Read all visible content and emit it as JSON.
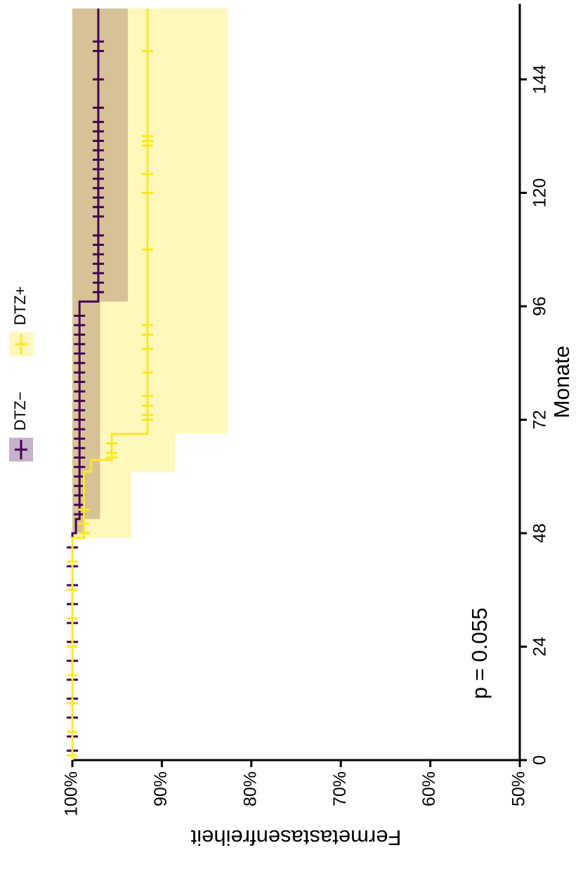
{
  "chart_data": {
    "type": "km",
    "x_label": "Monate",
    "y_label": "Fermetastasenfreiheit",
    "annotation": "p = 0.055",
    "xlim": [
      0,
      160
    ],
    "xticks": [
      0,
      24,
      48,
      72,
      96,
      120,
      144
    ],
    "ylim": [
      50,
      100
    ],
    "yticks": [
      {
        "value": 50,
        "label": "50%"
      },
      {
        "value": 60,
        "label": "60%"
      },
      {
        "value": 70,
        "label": "70%"
      },
      {
        "value": 80,
        "label": "80%"
      },
      {
        "value": 90,
        "label": "90%"
      },
      {
        "value": 100,
        "label": "100%"
      }
    ],
    "series": [
      {
        "name": "DTZ−",
        "color": "#440154",
        "x": [
          0,
          48,
          51,
          97,
          159
        ],
        "values": [
          100,
          99.6,
          99.2,
          97.1,
          97.1
        ],
        "ci_lower": [
          100,
          98.8,
          96.9,
          93.8,
          93.8
        ],
        "censor_x": [
          2,
          5,
          9,
          13,
          17,
          21,
          25,
          29,
          33,
          37,
          41,
          45,
          52,
          54,
          56,
          58,
          60,
          62,
          64,
          66,
          68,
          70,
          72,
          74,
          76,
          78,
          80,
          82,
          84,
          86,
          88,
          90,
          92,
          94,
          99,
          101,
          103,
          105,
          107,
          109,
          111,
          115,
          117,
          119,
          121,
          123,
          125,
          127,
          129,
          131,
          133,
          135,
          138,
          144,
          150,
          152
        ],
        "censor_values": [
          100,
          100,
          100,
          100,
          100,
          100,
          100,
          100,
          100,
          100,
          100,
          100,
          99.2,
          99.2,
          99.2,
          99.2,
          99.2,
          99.2,
          99.2,
          99.2,
          99.2,
          99.2,
          99.2,
          99.2,
          99.2,
          99.2,
          99.2,
          99.2,
          99.2,
          99.2,
          99.2,
          99.2,
          99.2,
          99.2,
          97.1,
          97.1,
          97.1,
          97.1,
          97.1,
          97.1,
          97.1,
          97.1,
          97.1,
          97.1,
          97.1,
          97.1,
          97.1,
          97.1,
          97.1,
          97.1,
          97.1,
          97.1,
          97.1,
          97.1,
          97.1,
          97.1
        ]
      },
      {
        "name": "DTZ+",
        "color": "#FDE725",
        "x": [
          0,
          47,
          61,
          63.5,
          69,
          159
        ],
        "values": [
          100,
          98.7,
          97.9,
          95.6,
          91.6,
          91.6
        ],
        "ci_lower": [
          100,
          93.4,
          88.5,
          88.5,
          82.6,
          82.6
        ],
        "censor_x": [
          1,
          6,
          12,
          18,
          24,
          30,
          36,
          42,
          48,
          50,
          53,
          64,
          65,
          67,
          72,
          73,
          75,
          77,
          82,
          87,
          90,
          92,
          108,
          120,
          124,
          130,
          131,
          132,
          150
        ],
        "censor_values": [
          100,
          100,
          100,
          100,
          100,
          100,
          100,
          100,
          98.7,
          98.7,
          98.7,
          95.6,
          95.6,
          95.6,
          91.6,
          91.6,
          91.6,
          91.6,
          91.6,
          91.6,
          91.6,
          91.6,
          91.6,
          91.6,
          91.6,
          91.6,
          91.6,
          91.6,
          91.6
        ]
      }
    ]
  }
}
